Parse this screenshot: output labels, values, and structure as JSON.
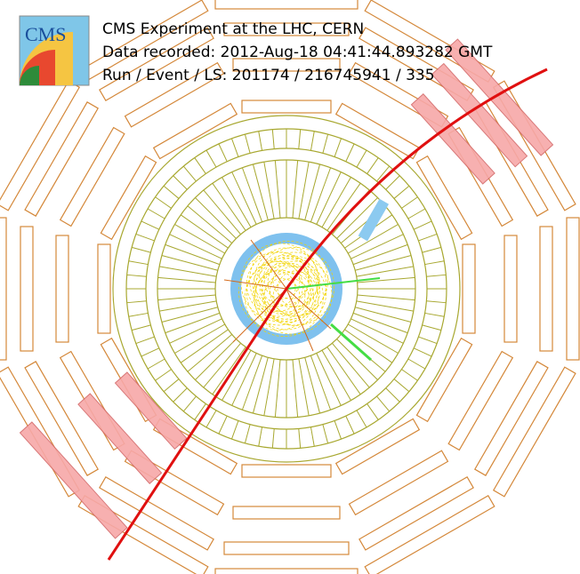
{
  "header": {
    "line1": "CMS Experiment at the LHC, CERN",
    "line2": "Data recorded: 2012-Aug-18 04:41:44.893282 GMT",
    "line3": "Run / Event / LS: 201174 / 216745941 / 335"
  },
  "logo": {
    "label": "CMS"
  }
}
